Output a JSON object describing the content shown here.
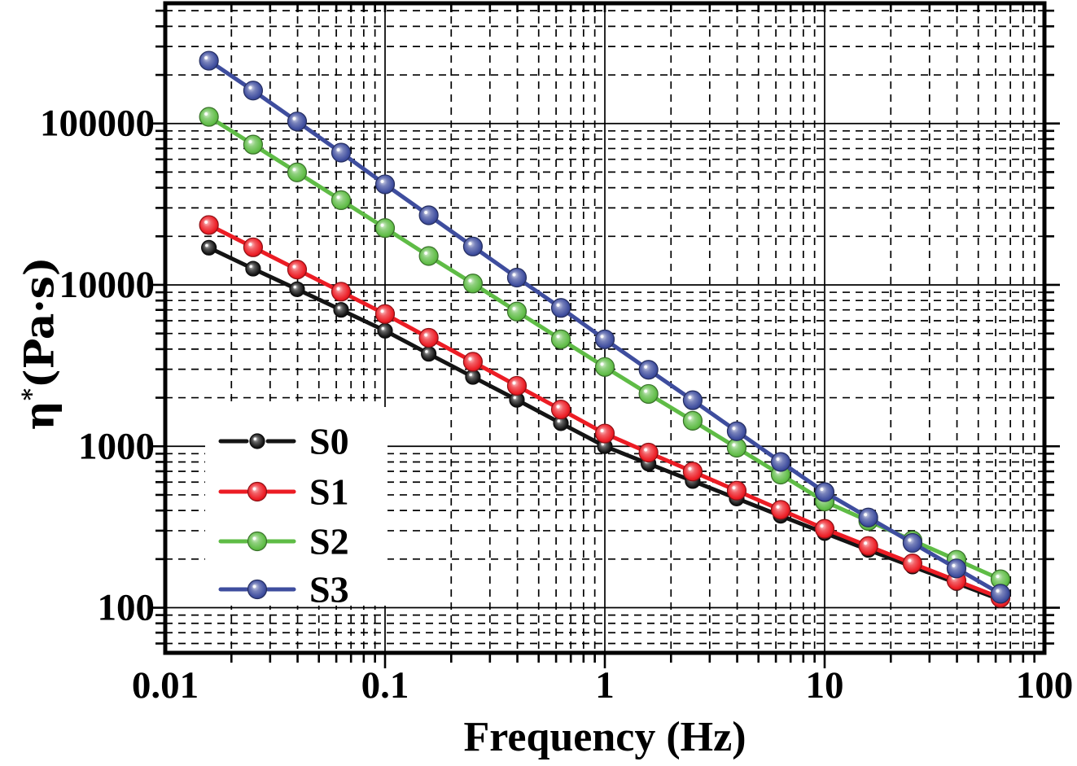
{
  "chart_data": {
    "type": "line",
    "title": "",
    "xlabel": "Frequency (Hz)",
    "ylabel": "η*(Pa·s)",
    "ylabel_parts": {
      "symbol": "η",
      "sup": "*",
      "unit": "(Pa·s)"
    },
    "x_scale": "log",
    "y_scale": "log",
    "xlim": [
      0.01,
      100
    ],
    "ylim": [
      52.5,
      556000
    ],
    "x_tick_labels": [
      "0.01",
      "0.1",
      "1",
      "10",
      "100"
    ],
    "x_tick_values": [
      0.01,
      0.1,
      1,
      10,
      100
    ],
    "y_tick_labels": [
      "100000",
      "10000",
      "1000",
      "100"
    ],
    "y_tick_values": [
      100000,
      10000,
      1000,
      100
    ],
    "grid": "black dashed minor lines, solid decade lines, full frame with mirrored ticks",
    "legend_position": "inside-left-center, opaque white background, no border",
    "x": [
      0.0158,
      0.0251,
      0.0398,
      0.0631,
      0.1,
      0.158,
      0.251,
      0.398,
      0.631,
      1,
      1.58,
      2.51,
      3.98,
      6.31,
      10,
      15.8,
      25.1,
      39.8,
      63.1
    ],
    "series": [
      {
        "name": "S0",
        "color": "#141414",
        "marker_radius": 9,
        "values": [
          17000,
          12600,
          9400,
          7000,
          5200,
          3740,
          2690,
          1940,
          1390,
          1000,
          781,
          609,
          475,
          371,
          290,
          228,
          180,
          142,
          112
        ]
      },
      {
        "name": "S1",
        "color": "#ec1c24",
        "marker_radius": 11.5,
        "values": [
          23500,
          17100,
          12450,
          9080,
          6600,
          4700,
          3340,
          2370,
          1690,
          1200,
          914,
          697,
          531,
          404,
          308,
          241,
          188,
          147,
          115
        ]
      },
      {
        "name": "S2",
        "color": "#5fbc46",
        "marker_radius": 11.5,
        "values": [
          110000,
          74000,
          49800,
          33500,
          22500,
          15100,
          10200,
          6840,
          4600,
          3100,
          2110,
          1440,
          980,
          668,
          455,
          345,
          261,
          198,
          150
        ]
      },
      {
        "name": "S3",
        "color": "#3e4d9e",
        "marker_radius": 11.5,
        "values": [
          245000,
          160000,
          103000,
          66000,
          42000,
          27000,
          17300,
          11100,
          7200,
          4600,
          2980,
          1930,
          1240,
          800,
          520,
          362,
          252,
          175,
          122
        ]
      }
    ]
  }
}
